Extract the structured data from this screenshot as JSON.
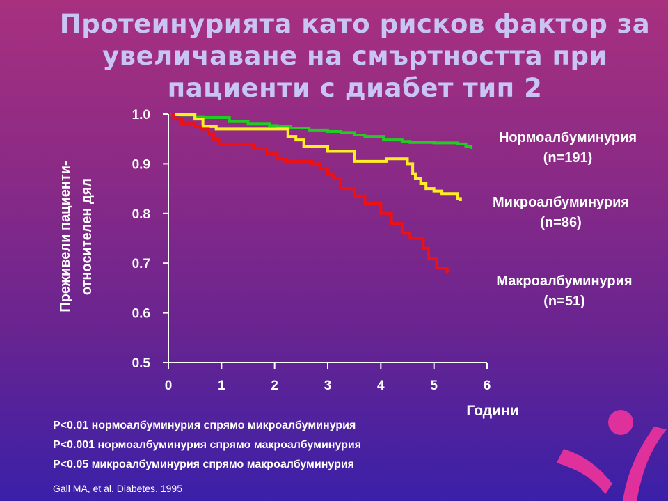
{
  "title": {
    "line1": "Протеинурията като рисков фактор за",
    "line2": "увеличаване на смъртността при",
    "line3": "пациенти с диабет тип 2"
  },
  "chart_data": {
    "type": "line",
    "ylabel_line1": "Преживели пациенти-",
    "ylabel_line2": "относителен дял",
    "xlabel": "Години",
    "xlim": [
      0,
      6
    ],
    "ylim": [
      0.5,
      1.0
    ],
    "x_ticks": [
      "0",
      "1",
      "2",
      "3",
      "4",
      "5",
      "6"
    ],
    "y_ticks": [
      "1.0",
      "0.9",
      "0.8",
      "0.7",
      "0.6",
      "0.5"
    ],
    "grid": false,
    "series": [
      {
        "name_line1": "Нормоалбуминурия",
        "name_line2": "(n=191)",
        "color": "#22cc22",
        "x": [
          0.05,
          0.15,
          0.25,
          0.5,
          0.65,
          1.0,
          1.15,
          1.5,
          1.9,
          2.05,
          2.3,
          2.65,
          3.0,
          3.25,
          3.5,
          3.7,
          4.05,
          4.4,
          4.55,
          5.0,
          5.45,
          5.6,
          5.7
        ],
        "y": [
          1.0,
          1.0,
          0.998,
          0.995,
          0.993,
          0.993,
          0.985,
          0.98,
          0.977,
          0.975,
          0.972,
          0.968,
          0.965,
          0.963,
          0.958,
          0.955,
          0.948,
          0.945,
          0.943,
          0.942,
          0.94,
          0.935,
          0.93
        ]
      },
      {
        "name_line1": "Микроалбуминурия",
        "name_line2": "(n=86)",
        "color": "#ffee22",
        "x": [
          0.05,
          0.2,
          0.5,
          0.65,
          0.9,
          1.05,
          1.5,
          2.05,
          2.25,
          2.4,
          2.55,
          3.0,
          3.15,
          3.3,
          3.5,
          3.8,
          4.1,
          4.25,
          4.5,
          4.6,
          4.65,
          4.75,
          4.85,
          5.0,
          5.15,
          5.4,
          5.45,
          5.5
        ],
        "y": [
          1.0,
          1.0,
          0.99,
          0.975,
          0.97,
          0.97,
          0.97,
          0.97,
          0.955,
          0.948,
          0.935,
          0.925,
          0.925,
          0.925,
          0.905,
          0.905,
          0.91,
          0.91,
          0.9,
          0.88,
          0.87,
          0.86,
          0.85,
          0.845,
          0.84,
          0.84,
          0.83,
          0.825
        ]
      },
      {
        "name_line1": "Макроалбуминурия",
        "name_line2": "(n=51)",
        "color": "#ee1111",
        "x": [
          0.05,
          0.1,
          0.25,
          0.5,
          0.6,
          0.75,
          0.85,
          0.95,
          1.3,
          1.6,
          1.85,
          2.05,
          2.2,
          2.7,
          2.85,
          3.0,
          3.1,
          3.25,
          3.5,
          3.7,
          4.0,
          4.2,
          4.4,
          4.55,
          4.8,
          4.9,
          5.05,
          5.25
        ],
        "y": [
          1.0,
          0.99,
          0.98,
          0.975,
          0.97,
          0.96,
          0.95,
          0.94,
          0.94,
          0.93,
          0.92,
          0.91,
          0.905,
          0.9,
          0.89,
          0.88,
          0.87,
          0.85,
          0.835,
          0.82,
          0.8,
          0.78,
          0.76,
          0.75,
          0.73,
          0.71,
          0.69,
          0.68
        ]
      }
    ]
  },
  "pvalues": [
    "P<0.01 нормоалбуминурия спрямо микроалбуминурия",
    "P<0.001 нормоалбуминурия спрямо макроалбуминурия",
    "P<0.05 микроалбуминурия спрямо макроалбуминурия"
  ],
  "reference": "Gall MA, et al. Diabetes. 1995"
}
